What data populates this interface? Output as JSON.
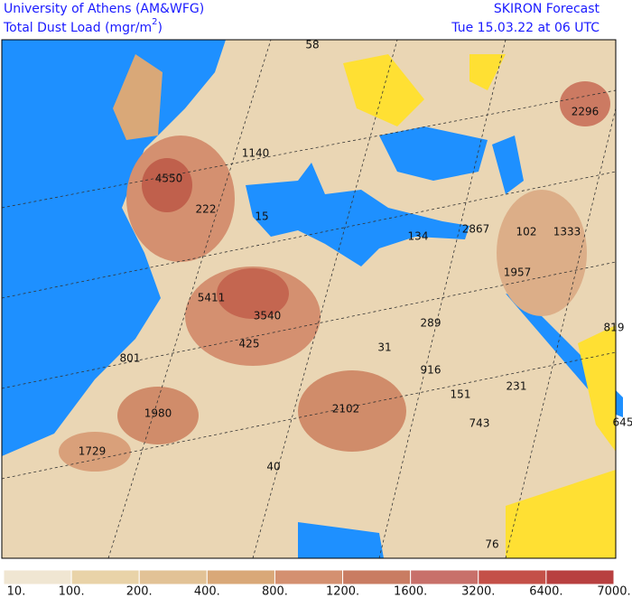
{
  "header": {
    "institution": "University of Athens (AM&WFG)",
    "variable": "Total Dust Load (mgr/m",
    "superscript": "2",
    "variable_end": ")",
    "product": "SKIRON Forecast",
    "valid_time": "Tue 15.03.22 at 06 UTC"
  },
  "map_labels": [
    "58",
    "4550",
    "1140",
    "222",
    "15",
    "5411",
    "3540",
    "425",
    "801",
    "1980",
    "1729",
    "2102",
    "31",
    "289",
    "916",
    "151",
    "231",
    "743",
    "40",
    "134",
    "2867",
    "102",
    "1333",
    "1957",
    "819",
    "645",
    "2296",
    "76"
  ],
  "colorbar": {
    "labels": [
      "10.",
      "100.",
      "200.",
      "400.",
      "800.",
      "1200.",
      "1600.",
      "3200.",
      "6400.",
      "7000."
    ]
  }
}
